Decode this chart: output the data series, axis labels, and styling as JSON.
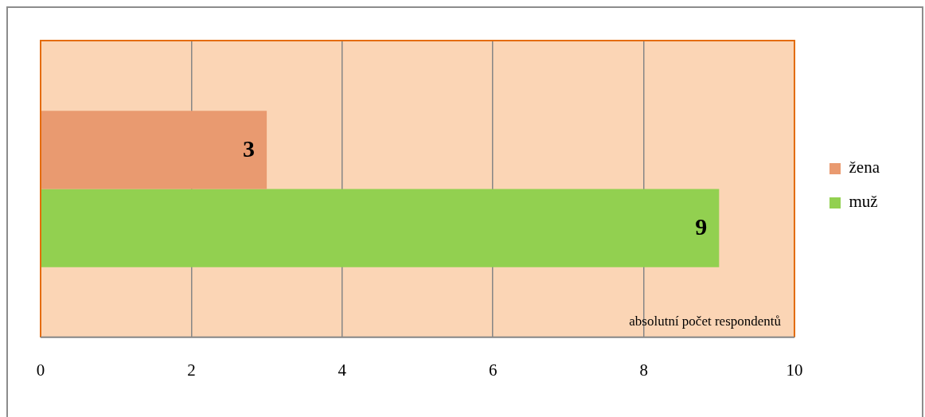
{
  "chart_data": {
    "type": "bar",
    "orientation": "horizontal",
    "categories": [
      null
    ],
    "series": [
      {
        "name": "žena",
        "color": "#e99a70",
        "values": [
          3
        ]
      },
      {
        "name": "muž",
        "color": "#92d050",
        "values": [
          9
        ]
      }
    ],
    "xlim": [
      0,
      10
    ],
    "xticks": [
      0,
      2,
      4,
      6,
      8,
      10
    ],
    "xlabel": "absolutní počet respondentů",
    "grid": "x",
    "legend": "right",
    "data_labels": true
  }
}
